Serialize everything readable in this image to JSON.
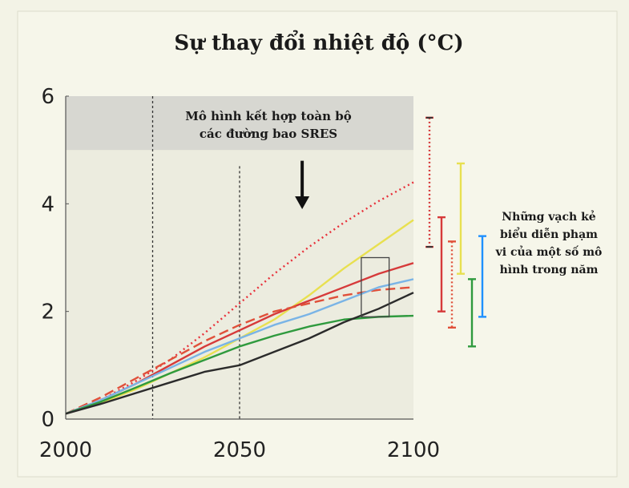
{
  "chart_data": {
    "type": "line",
    "title": "Sự thay đổi nhiệt độ (°C)",
    "xlabel": "",
    "ylabel": "",
    "xlim": [
      2000,
      2100
    ],
    "ylim": [
      0,
      6
    ],
    "x_ticks": [
      "2000",
      "2050",
      "2100"
    ],
    "y_ticks": [
      "0",
      "2",
      "4",
      "6"
    ],
    "annotation_top": [
      "Mô hình kết hợp toàn bộ",
      "các đường bao SRES"
    ],
    "annotation_right": [
      "Những vạch kẻ",
      "biểu diễn phạm",
      "vi của một số mô",
      "hình trong năm"
    ],
    "vertical_markers": [
      2025,
      2050
    ],
    "grey_band_ylim": [
      5.0,
      6.0
    ],
    "box": {
      "x": [
        2085,
        2093
      ],
      "y": [
        1.9,
        3.0
      ]
    },
    "arrow": {
      "x": 2068,
      "y_from": 4.8,
      "y_to": 3.9
    },
    "series": [
      {
        "color": "#e8303a",
        "style": "dotted",
        "x": [
          2000,
          2010,
          2020,
          2030,
          2040,
          2050,
          2060,
          2070,
          2080,
          2090,
          2100
        ],
        "values": [
          0.1,
          0.35,
          0.7,
          1.1,
          1.6,
          2.15,
          2.7,
          3.2,
          3.65,
          4.05,
          4.4
        ]
      },
      {
        "color": "#e8e050",
        "x": [
          2000,
          2010,
          2020,
          2030,
          2040,
          2050,
          2060,
          2070,
          2080,
          2090,
          2100
        ],
        "values": [
          0.1,
          0.3,
          0.55,
          0.85,
          1.15,
          1.5,
          1.85,
          2.3,
          2.8,
          3.25,
          3.7
        ]
      },
      {
        "color": "#d63a3a",
        "x": [
          2000,
          2010,
          2020,
          2030,
          2040,
          2050,
          2060,
          2070,
          2080,
          2090,
          2100
        ],
        "values": [
          0.1,
          0.35,
          0.65,
          1.0,
          1.35,
          1.65,
          1.95,
          2.2,
          2.45,
          2.7,
          2.9
        ]
      },
      {
        "color": "#e0503a",
        "style": "dashed",
        "x": [
          2000,
          2010,
          2020,
          2030,
          2040,
          2050,
          2060,
          2070,
          2080,
          2090,
          2100
        ],
        "values": [
          0.1,
          0.4,
          0.75,
          1.1,
          1.45,
          1.75,
          2.0,
          2.15,
          2.3,
          2.4,
          2.45
        ]
      },
      {
        "color": "#7ab4e6",
        "x": [
          2000,
          2010,
          2020,
          2030,
          2040,
          2050,
          2060,
          2070,
          2080,
          2090,
          2100
        ],
        "values": [
          0.1,
          0.35,
          0.65,
          0.95,
          1.25,
          1.5,
          1.75,
          1.95,
          2.2,
          2.45,
          2.6
        ]
      },
      {
        "color": "#2f9a3e",
        "x": [
          2000,
          2010,
          2020,
          2030,
          2040,
          2050,
          2060,
          2070,
          2080,
          2090,
          2100
        ],
        "values": [
          0.1,
          0.32,
          0.58,
          0.85,
          1.1,
          1.35,
          1.55,
          1.72,
          1.85,
          1.9,
          1.92
        ]
      },
      {
        "color": "#2b2b2b",
        "x": [
          2000,
          2010,
          2020,
          2030,
          2040,
          2050,
          2060,
          2070,
          2080,
          2090,
          2100
        ],
        "values": [
          0.1,
          0.28,
          0.48,
          0.68,
          0.88,
          1.0,
          1.25,
          1.5,
          1.8,
          2.05,
          2.35
        ]
      }
    ],
    "range_bars": [
      {
        "color": "#d63a3a",
        "style": "dotted",
        "low": 3.2,
        "high": 5.6,
        "mark": 3.2
      },
      {
        "color": "#d63a3a",
        "low": 2.0,
        "high": 3.75
      },
      {
        "color": "#e0503a",
        "style": "dotted",
        "low": 1.7,
        "high": 3.3
      },
      {
        "color": "#e8e050",
        "low": 2.7,
        "high": 4.75
      },
      {
        "color": "#2f9a3e",
        "low": 1.35,
        "high": 2.6
      },
      {
        "color": "#1e90ff",
        "low": 1.9,
        "high": 3.4
      }
    ]
  }
}
